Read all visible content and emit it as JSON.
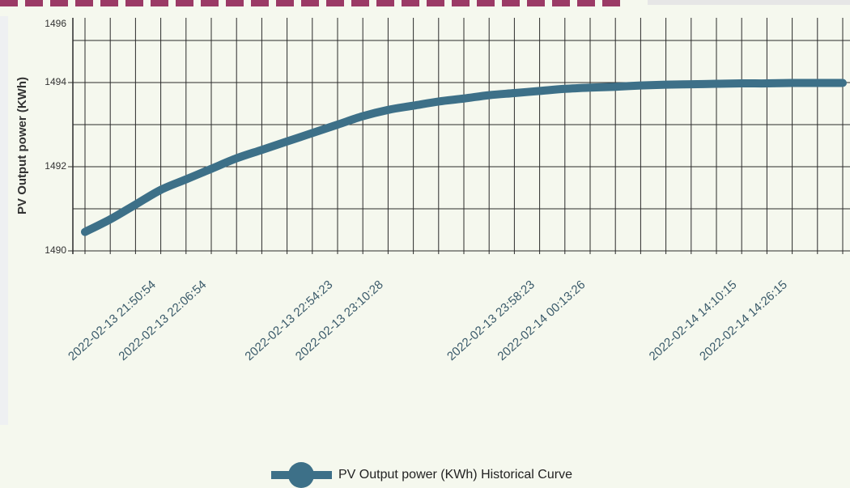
{
  "chart_data": {
    "type": "line",
    "y_label": "PV Output power (KWh)",
    "categories": [
      null,
      null,
      null,
      "2022-02-13  21:50:54",
      null,
      "2022-02-13  22:06:54",
      null,
      null,
      null,
      null,
      "2022-02-13  22:54:23",
      null,
      "2022-02-13  23:10:28",
      null,
      null,
      null,
      null,
      null,
      "2022-02-13  23:58:23",
      null,
      "2022-02-14  00:13:26",
      null,
      null,
      null,
      null,
      null,
      "2022-02-14  14:10:15",
      null,
      "2022-02-14  14:26:15",
      null,
      null
    ],
    "series": [
      {
        "name": "PV Output power (KWh) Historical Curve",
        "color": "#3d7088",
        "values": [
          1490.45,
          1490.75,
          1491.1,
          1491.45,
          1491.7,
          1491.95,
          1492.2,
          1492.4,
          1492.6,
          1492.8,
          1493.0,
          1493.2,
          1493.35,
          1493.45,
          1493.55,
          1493.62,
          1493.7,
          1493.75,
          1493.8,
          1493.85,
          1493.88,
          1493.9,
          1493.93,
          1493.95,
          1493.96,
          1493.97,
          1493.98,
          1493.98,
          1493.99,
          1493.99,
          1493.99
        ]
      }
    ],
    "ylim": [
      1490,
      1496
    ],
    "yticks": [
      1490,
      1492,
      1494,
      1496
    ],
    "minor_yticks": [
      1491,
      1493,
      1495
    ],
    "grid": true
  }
}
